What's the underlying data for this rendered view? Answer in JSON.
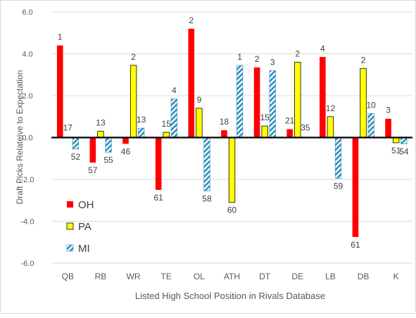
{
  "chart_data": {
    "type": "bar",
    "title": "",
    "xlabel": "Listed High School Position in Rivals Database",
    "ylabel": "Draft Picks Relateive to Expectation",
    "ylim": [
      -6,
      6
    ],
    "yticks": [
      6,
      4,
      2,
      0,
      -2,
      -4,
      -6
    ],
    "ytick_labels": [
      "6.0",
      "4.0",
      "2.0",
      "0.0",
      "-2.0",
      "-4.0",
      "-6.0"
    ],
    "grid": true,
    "legend_position": "bottom-left",
    "categories": [
      "QB",
      "RB",
      "WR",
      "TE",
      "OL",
      "ATH",
      "DT",
      "DE",
      "LB",
      "DB",
      "K"
    ],
    "series": [
      {
        "name": "OH",
        "color": "#ff0000",
        "pattern": "solid",
        "values": [
          4.4,
          -1.2,
          -0.3,
          -2.5,
          5.2,
          0.35,
          3.35,
          0.4,
          3.85,
          -4.75,
          0.9
        ],
        "labels": [
          "1",
          "57",
          "46",
          "61",
          "2",
          "18",
          "2",
          "21",
          "4",
          "61",
          "3"
        ]
      },
      {
        "name": "PA",
        "color": "#ffff00",
        "pattern": "solid",
        "values": [
          0.0,
          0.3,
          3.45,
          0.25,
          1.4,
          -3.1,
          0.55,
          3.6,
          1.0,
          3.3,
          -0.25
        ],
        "labels": [
          "17",
          "13",
          "2",
          "15",
          "9",
          "60",
          "15",
          "2",
          "12",
          "2",
          "51"
        ]
      },
      {
        "name": "MI",
        "color": "#4bacc6",
        "pattern": "hatched",
        "values": [
          -0.55,
          -0.7,
          0.45,
          1.85,
          -2.55,
          3.45,
          3.2,
          0.0,
          -1.95,
          1.15,
          -0.3
        ],
        "labels": [
          "52",
          "55",
          "13",
          "4",
          "58",
          "1",
          "3",
          "35",
          "59",
          "10",
          "54"
        ]
      }
    ]
  }
}
